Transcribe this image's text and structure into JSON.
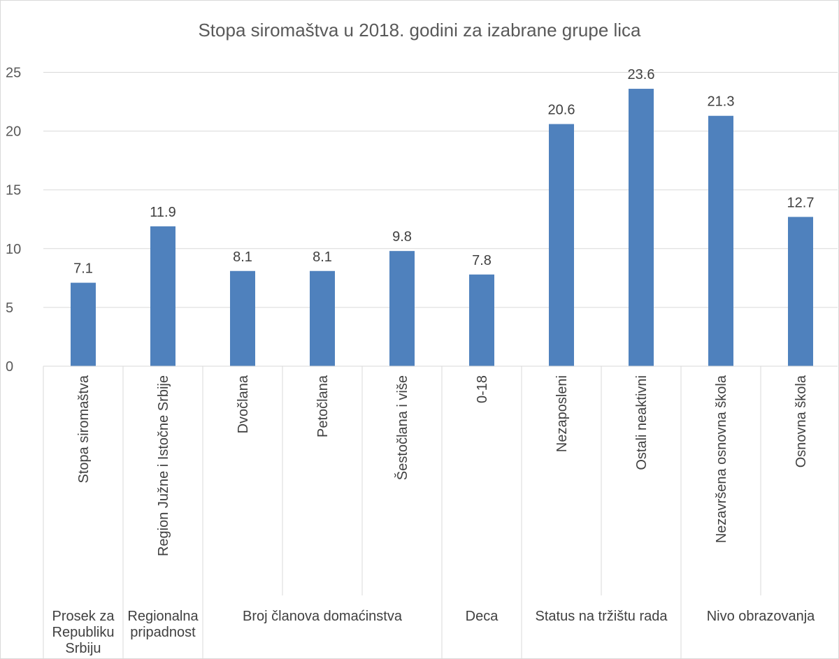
{
  "chart_data": {
    "type": "bar",
    "title": "Stopa siromaštva u 2018. godini za izabrane grupe lica",
    "xlabel": "",
    "ylabel": "",
    "ylim": [
      0,
      25
    ],
    "yticks": [
      0,
      5,
      10,
      15,
      20,
      25
    ],
    "grid": true,
    "bar_color": "#4f81bd",
    "categories": [
      "Stopa siromaštva",
      "Region Južne i Istočne Srbije",
      "Dvočlana",
      "Petočlana",
      "Šestočlana i više",
      "0-18",
      "Nezaposleni",
      "Ostali neaktivni",
      "Nezavršena osnovna škola",
      "Osnovna škola"
    ],
    "values": [
      7.1,
      11.9,
      8.1,
      8.1,
      9.8,
      7.8,
      20.6,
      23.6,
      21.3,
      12.7
    ],
    "data_labels": [
      "7.1",
      "11.9",
      "8.1",
      "8.1",
      "9.8",
      "7.8",
      "20.6",
      "23.6",
      "21.3",
      "12.7"
    ],
    "groups": [
      {
        "label": [
          "Prosek za",
          "Republiku",
          "Srbiju"
        ],
        "span": 1
      },
      {
        "label": [
          "Regionalna",
          "pripadnost"
        ],
        "span": 1
      },
      {
        "label": [
          "Broj članova domaćinstva"
        ],
        "span": 3
      },
      {
        "label": [
          "Deca"
        ],
        "span": 1
      },
      {
        "label": [
          "Status na tržištu rada"
        ],
        "span": 2
      },
      {
        "label": [
          "Nivo obrazovanja"
        ],
        "span": 2
      }
    ]
  }
}
